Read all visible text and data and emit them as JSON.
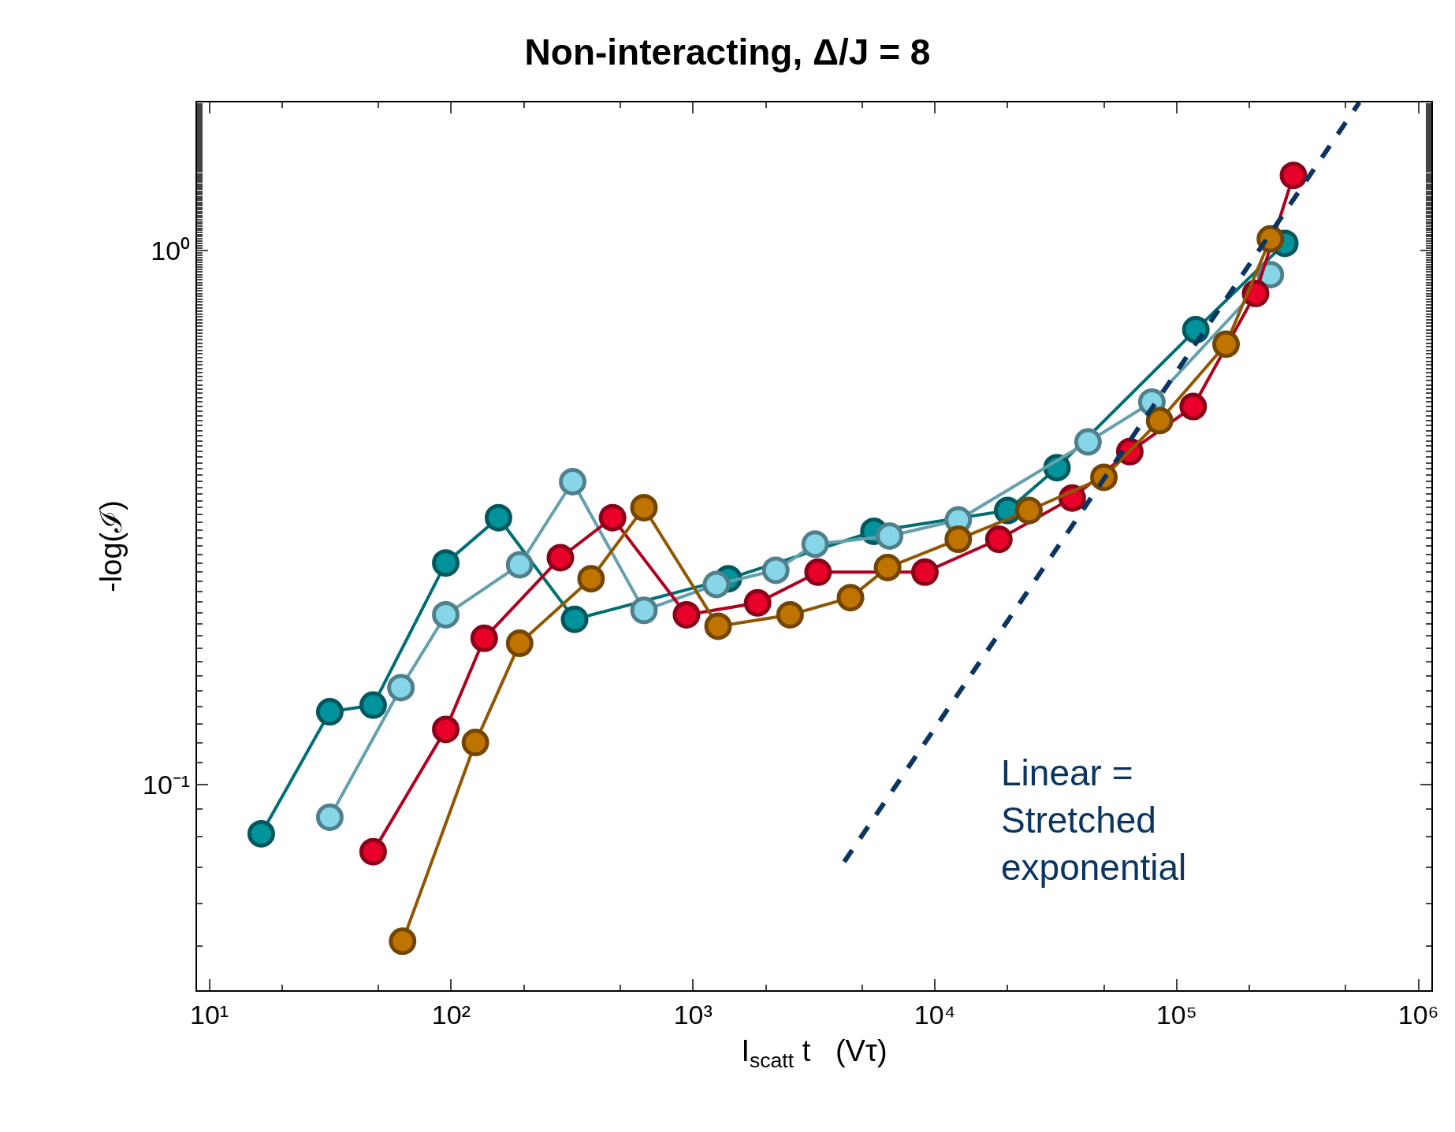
{
  "chart_data": {
    "type": "line",
    "title": "Non-interacting, Δ/J = 8",
    "xlabel": "I$_{scatt}$ t   (Vτ)",
    "ylabel": "-log(ℐ)",
    "log": "xy",
    "marker": "circle",
    "line_style": "solid",
    "xlim": [
      8.9,
      1130000
    ],
    "ylim": [
      0.0413,
      1.89
    ],
    "xticks": [
      {
        "value": 10,
        "label": "10¹"
      },
      {
        "value": 100,
        "label": "10²"
      },
      {
        "value": 1000,
        "label": "10³"
      },
      {
        "value": 10000,
        "label": "10⁴"
      },
      {
        "value": 100000,
        "label": "10⁵"
      },
      {
        "value": 1000000,
        "label": "10⁶"
      }
    ],
    "yticks": [
      {
        "value": 0.1,
        "label": "10⁻¹"
      },
      {
        "value": 1,
        "label": "10⁰"
      }
    ],
    "series": [
      {
        "color": "#00939c",
        "x": [
          16.4,
          31.5,
          47.6,
          95,
          157,
          324,
          1400,
          5600,
          20000,
          32000,
          120000,
          280000
        ],
        "values": [
          0.081,
          0.137,
          0.141,
          0.26,
          0.316,
          0.204,
          0.243,
          0.298,
          0.326,
          0.392,
          0.71,
          1.03
        ]
      },
      {
        "color": "#86d6e8",
        "x": [
          31.5,
          62,
          95,
          192,
          318,
          627,
          1250,
          2200,
          3200,
          6500,
          12500,
          43000,
          79000,
          244000
        ],
        "values": [
          0.087,
          0.152,
          0.208,
          0.258,
          0.369,
          0.212,
          0.237,
          0.252,
          0.282,
          0.292,
          0.313,
          0.438,
          0.52,
          0.9
        ]
      },
      {
        "color": "#e8002a",
        "x": [
          47.6,
          95,
          137,
          283,
          465,
          940,
          1850,
          3290,
          9100,
          18400,
          37000,
          64000,
          117000,
          212000,
          304000
        ],
        "values": [
          0.075,
          0.127,
          0.188,
          0.266,
          0.316,
          0.208,
          0.219,
          0.25,
          0.25,
          0.288,
          0.344,
          0.42,
          0.51,
          0.83,
          1.38
        ]
      },
      {
        "color": "#c07400",
        "x": [
          63,
          126,
          192,
          379,
          627,
          1270,
          2520,
          4480,
          6380,
          12500,
          24500,
          50000,
          85000,
          160000,
          244000
        ],
        "values": [
          0.051,
          0.12,
          0.184,
          0.243,
          0.33,
          0.198,
          0.208,
          0.224,
          0.255,
          0.288,
          0.326,
          0.376,
          0.48,
          0.667,
          1.05
        ]
      },
      {
        "color": "#0b3560",
        "marker": "none",
        "line_style": "dashed",
        "x": [
          4220,
          569000
        ],
        "values": [
          0.0718,
          1.89
        ]
      }
    ],
    "annotations": [
      "Linear =\nStretched\nexponential"
    ]
  }
}
